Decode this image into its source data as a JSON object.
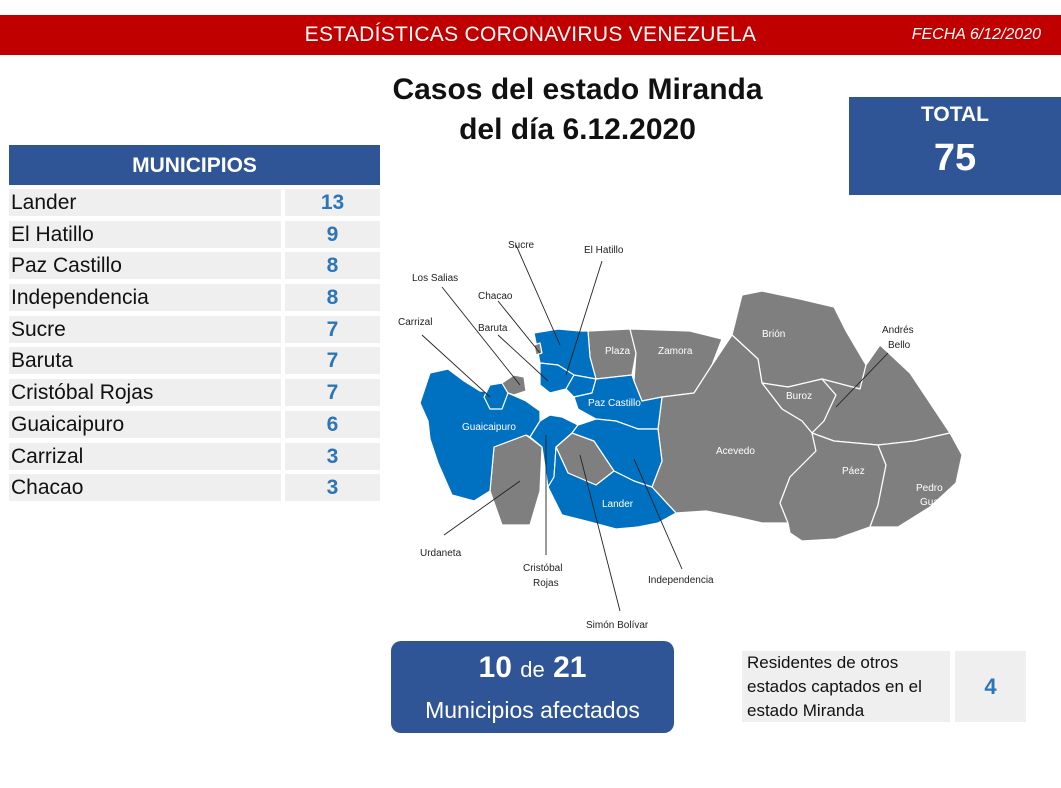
{
  "header": {
    "title": "ESTADÍSTICAS CORONAVIRUS VENEZUELA",
    "date": "FECHA 6/12/2020"
  },
  "heading": {
    "line1": "Casos del estado Miranda",
    "line2": "del día 6.12.2020"
  },
  "total": {
    "label": "TOTAL",
    "value": "75"
  },
  "municipios": {
    "header": "MUNICIPIOS",
    "rows": [
      {
        "name": "Lander",
        "count": "13"
      },
      {
        "name": "El Hatillo",
        "count": "9"
      },
      {
        "name": "Paz Castillo",
        "count": "8"
      },
      {
        "name": "Independencia",
        "count": "8"
      },
      {
        "name": "Sucre",
        "count": "7"
      },
      {
        "name": "Baruta",
        "count": "7"
      },
      {
        "name": "Cristóbal Rojas",
        "count": "7"
      },
      {
        "name": "Guaicaipuro",
        "count": "6"
      },
      {
        "name": "Carrizal",
        "count": "3"
      },
      {
        "name": "Chacao",
        "count": "3"
      }
    ]
  },
  "map": {
    "affected_color": "#0070c0",
    "unaffected_color": "#7f7f7f",
    "labels": {
      "sucre": "Sucre",
      "el_hatillo": "El Hatillo",
      "los_salias": "Los Salias",
      "chacao": "Chacao",
      "carrizal": "Carrizal",
      "baruta": "Baruta",
      "plaza": "Plaza",
      "zamora": "Zamora",
      "brion": "Brión",
      "andres_bello_1": "Andrés",
      "andres_bello_2": "Bello",
      "buroz": "Buroz",
      "paz_castillo": "Paz Castillo",
      "guaicaipuro": "Guaicaipuro",
      "acevedo": "Acevedo",
      "paez": "Páez",
      "pedro_gual_1": "Pedro",
      "pedro_gual_2": "Gual",
      "lander": "Lander",
      "urdaneta": "Urdaneta",
      "cristobal_rojas_1": "Cristóbal",
      "cristobal_rojas_2": "Rojas",
      "independencia": "Independencia",
      "simon_bolivar": "Simón Bolívar"
    }
  },
  "affected": {
    "count": "10",
    "of": "de",
    "total": "21",
    "label": "Municipios afectados"
  },
  "others": {
    "text_line1": "Residentes de otros",
    "text_line2": "estados captados en el",
    "text_line3": "estado Miranda",
    "value": "4"
  }
}
